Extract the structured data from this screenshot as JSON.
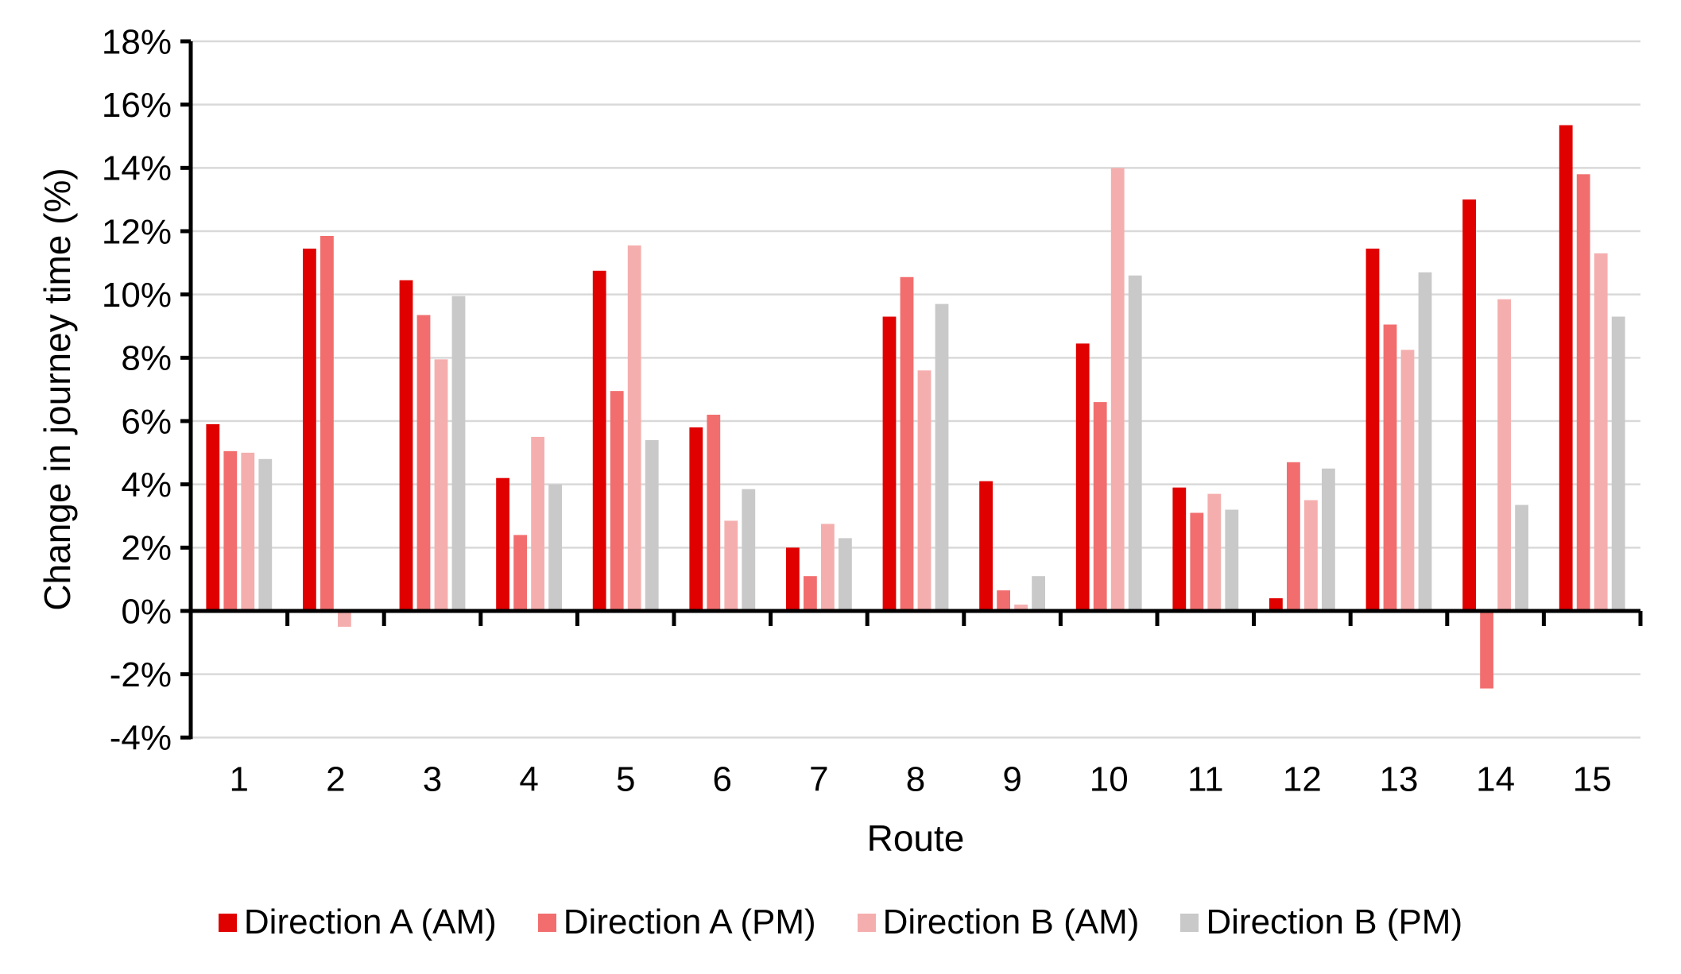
{
  "chart_data": {
    "type": "bar",
    "title": "",
    "xlabel": "Route",
    "ylabel": "Change in journey time (%)",
    "categories": [
      "1",
      "2",
      "3",
      "4",
      "5",
      "6",
      "7",
      "8",
      "9",
      "10",
      "11",
      "12",
      "13",
      "14",
      "15"
    ],
    "series": [
      {
        "name": "Direction A (AM)",
        "color": "#E00000",
        "values": [
          5.9,
          11.45,
          10.45,
          4.2,
          10.75,
          5.8,
          2.0,
          9.3,
          4.1,
          8.45,
          3.9,
          0.4,
          11.45,
          13.0,
          15.35
        ]
      },
      {
        "name": "Direction A (PM)",
        "color": "#F26E6E",
        "values": [
          5.05,
          11.85,
          9.35,
          2.4,
          6.95,
          6.2,
          1.1,
          10.55,
          0.65,
          6.6,
          3.1,
          4.7,
          9.05,
          -2.45,
          13.8
        ]
      },
      {
        "name": "Direction B (AM)",
        "color": "#F5AEAE",
        "values": [
          5.0,
          -0.5,
          7.95,
          5.5,
          11.55,
          2.85,
          2.75,
          7.6,
          0.2,
          14.0,
          3.7,
          3.5,
          8.25,
          9.85,
          11.3
        ]
      },
      {
        "name": "Direction B (PM)",
        "color": "#C9C9C9",
        "values": [
          4.8,
          0.0,
          9.95,
          4.0,
          5.4,
          3.85,
          2.3,
          9.7,
          1.1,
          10.6,
          3.2,
          4.5,
          10.7,
          3.35,
          9.3
        ]
      }
    ],
    "ylim": [
      -4,
      18
    ],
    "ytick_step": 2,
    "ytick_format": "percent",
    "grid": true,
    "gridline_color": "#D9D9D9",
    "axis_color": "#000000",
    "background": "#FFFFFF",
    "legend_position": "bottom"
  }
}
